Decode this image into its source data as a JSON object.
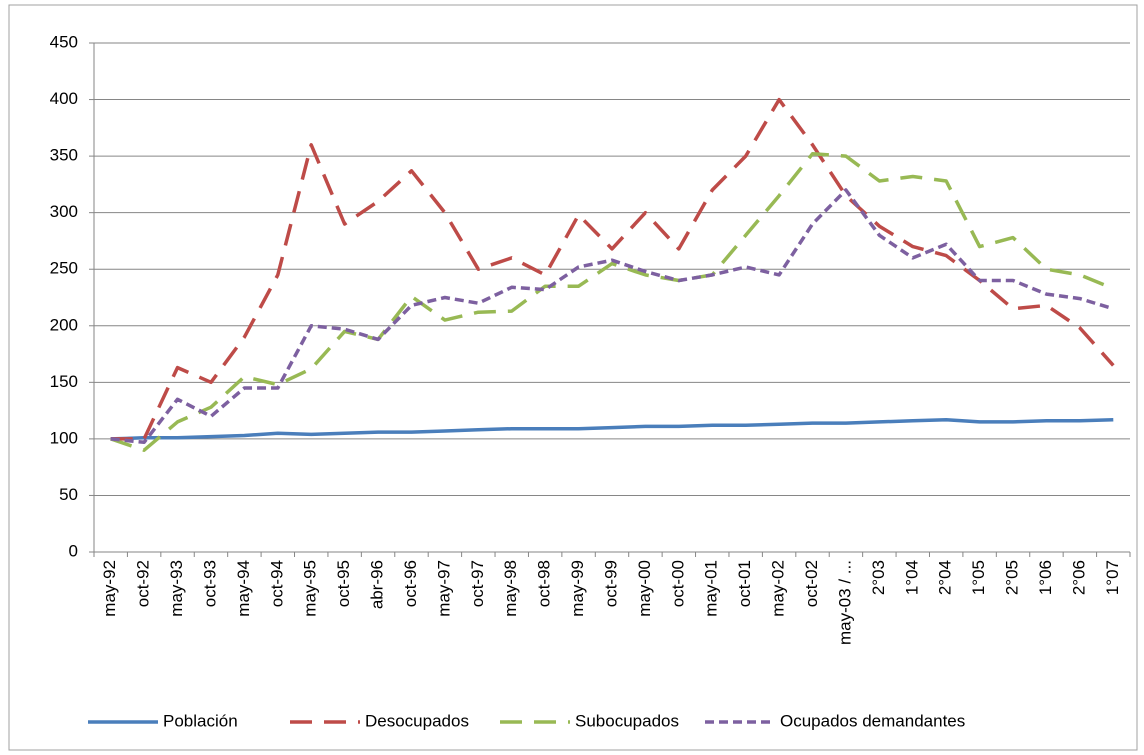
{
  "chart_data": {
    "type": "line",
    "categories": [
      "may-92",
      "oct-92",
      "may-93",
      "oct-93",
      "may-94",
      "oct-94",
      "may-95",
      "oct-95",
      "abr-96",
      "oct-96",
      "may-97",
      "oct-97",
      "may-98",
      "oct-98",
      "may-99",
      "oct-99",
      "may-00",
      "oct-00",
      "may-01",
      "oct-01",
      "may-02",
      "oct-02",
      "may-03 / ...",
      "2°03",
      "1°04",
      "2°04",
      "1°05",
      "2°05",
      "1°06",
      "2°06",
      "1°07"
    ],
    "series": [
      {
        "name": "Población",
        "color": "#4a7ebb",
        "dash": "solid",
        "values": [
          100,
          101,
          101,
          102,
          103,
          105,
          104,
          105,
          106,
          106,
          107,
          108,
          109,
          109,
          109,
          110,
          111,
          111,
          112,
          112,
          113,
          114,
          114,
          115,
          116,
          117,
          115,
          115,
          116,
          116,
          117
        ]
      },
      {
        "name": "Desocupados",
        "color": "#be4b48",
        "dash": "long",
        "values": [
          100,
          100,
          163,
          150,
          190,
          245,
          360,
          290,
          310,
          337,
          300,
          250,
          260,
          245,
          298,
          268,
          300,
          268,
          320,
          350,
          400,
          360,
          315,
          288,
          270,
          262,
          240,
          215,
          218,
          198,
          165
        ]
      },
      {
        "name": "Subocupados",
        "color": "#98b954",
        "dash": "long",
        "values": [
          100,
          90,
          115,
          128,
          155,
          148,
          162,
          195,
          188,
          226,
          205,
          212,
          213,
          235,
          235,
          255,
          245,
          240,
          245,
          280,
          315,
          352,
          350,
          328,
          332,
          328,
          270,
          278,
          250,
          245,
          233
        ]
      },
      {
        "name": "Ocupados demandantes",
        "color": "#7d60a0",
        "dash": "short",
        "values": [
          100,
          97,
          135,
          120,
          145,
          145,
          200,
          197,
          188,
          218,
          225,
          220,
          234,
          232,
          252,
          258,
          248,
          240,
          245,
          252,
          245,
          290,
          320,
          280,
          260,
          272,
          240,
          240,
          228,
          224,
          215
        ]
      }
    ],
    "ylim": [
      0,
      450
    ],
    "yticks": [
      0,
      50,
      100,
      150,
      200,
      250,
      300,
      350,
      400,
      450
    ],
    "grid": true,
    "legend": "bottom"
  }
}
